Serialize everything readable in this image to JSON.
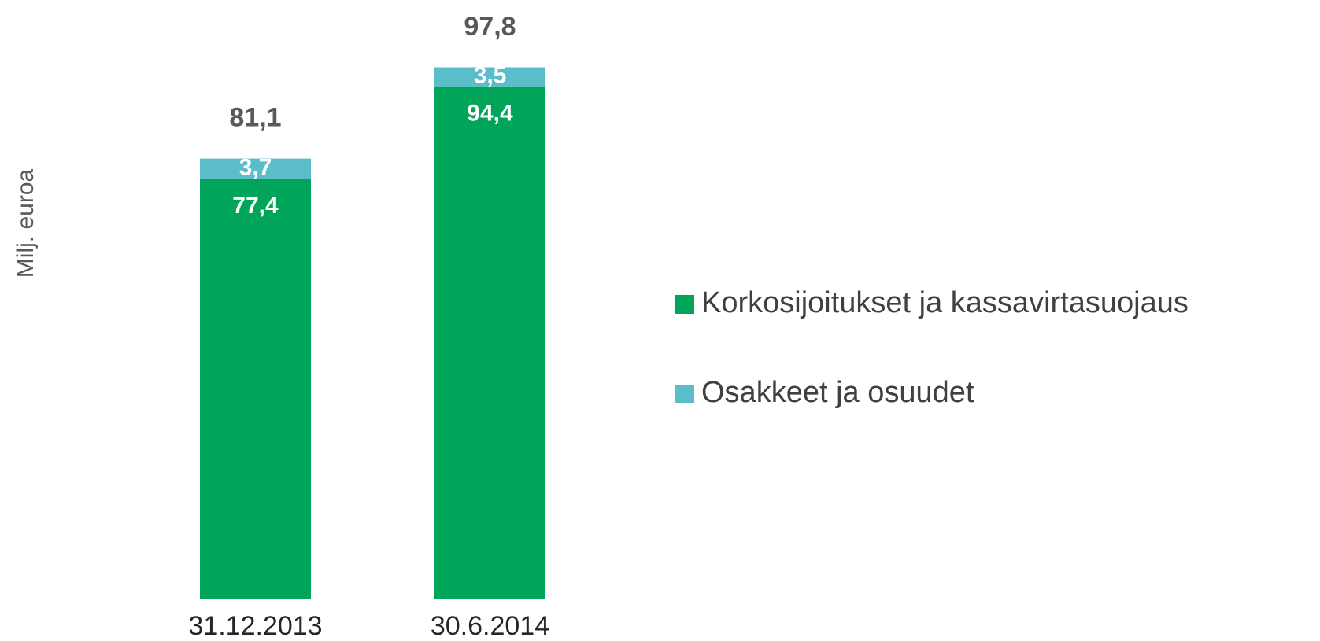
{
  "chart_data": {
    "type": "stacked_bar",
    "y_label": "Milj. euroa",
    "categories": [
      "31.12.2013",
      "30.6.2014"
    ],
    "series": [
      {
        "name": "Korkosijoitukset ja kassavirtasuojaus",
        "color": "#00a55a",
        "values": [
          77.4,
          94.4
        ],
        "value_labels": [
          "77,4",
          "94,4"
        ]
      },
      {
        "name": "Osakkeet ja osuudet",
        "color": "#5bbdc9",
        "values": [
          3.7,
          3.5
        ],
        "value_labels": [
          "3,7",
          "3,5"
        ]
      }
    ],
    "totals": [
      81.1,
      97.8
    ],
    "total_labels": [
      "81,1",
      "97,8"
    ],
    "ylim": [
      0,
      100
    ],
    "legend": "right"
  }
}
